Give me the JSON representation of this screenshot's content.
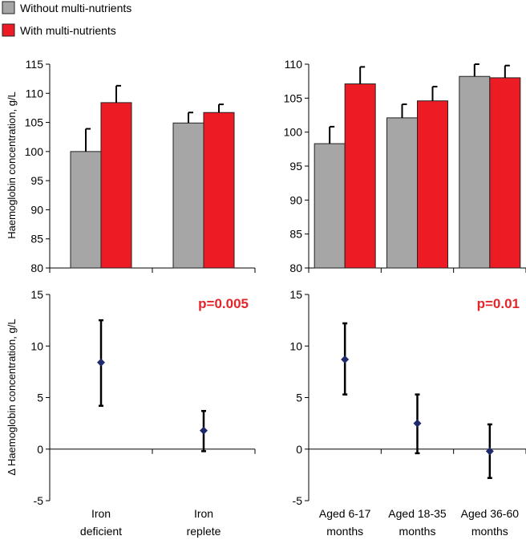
{
  "legend": [
    {
      "label": "Without multi-nutrients",
      "color": "#a6a6a6"
    },
    {
      "label": "With multi-nutrients",
      "color": "#ed1c24"
    }
  ],
  "y_label_top": "Haemoglobin concentration, g/L",
  "y_label_bottom": "Δ Haemoglobin concentration, g/L",
  "chart_data": [
    {
      "id": "top-left",
      "type": "bar",
      "categories": [
        "Iron deficient",
        "Iron replete"
      ],
      "series": [
        {
          "name": "Without multi-nutrients",
          "values": [
            100.0,
            104.9
          ],
          "errors": [
            3.9,
            1.8
          ]
        },
        {
          "name": "With multi-nutrients",
          "values": [
            108.4,
            106.7
          ],
          "errors": [
            2.9,
            1.4
          ]
        }
      ],
      "ylim": [
        80,
        115
      ],
      "yticks": [
        80,
        85,
        90,
        95,
        100,
        105,
        110,
        115
      ],
      "ylabel": "Haemoglobin concentration, g/L"
    },
    {
      "id": "top-right",
      "type": "bar",
      "categories": [
        "Aged 6-17 months",
        "Aged 18-35 months",
        "Aged 36-60 months"
      ],
      "series": [
        {
          "name": "Without multi-nutrients",
          "values": [
            98.3,
            102.1,
            108.2
          ],
          "errors": [
            2.5,
            2.0,
            1.8
          ]
        },
        {
          "name": "With multi-nutrients",
          "values": [
            107.1,
            104.6,
            108.0
          ],
          "errors": [
            2.5,
            2.1,
            1.8
          ]
        }
      ],
      "ylim": [
        80,
        110
      ],
      "yticks": [
        80,
        85,
        90,
        95,
        100,
        105,
        110
      ]
    },
    {
      "id": "bottom-left",
      "type": "scatter",
      "categories": [
        "Iron deficient",
        "Iron replete"
      ],
      "category_lines": [
        [
          "Iron",
          "deficient"
        ],
        [
          "Iron",
          "replete"
        ]
      ],
      "values": [
        8.4,
        1.8
      ],
      "lower": [
        4.2,
        -0.2
      ],
      "upper": [
        12.5,
        3.7
      ],
      "ylim": [
        -5,
        15
      ],
      "yticks": [
        -5,
        0,
        5,
        10,
        15
      ],
      "annotation": "p=0.005",
      "ylabel": "Δ Haemoglobin concentration, g/L"
    },
    {
      "id": "bottom-right",
      "type": "scatter",
      "categories": [
        "Aged 6-17 months",
        "Aged 18-35 months",
        "Aged 36-60 months"
      ],
      "category_lines": [
        [
          "Aged 6-17",
          "months"
        ],
        [
          "Aged 18-35",
          "months"
        ],
        [
          "Aged 36-60",
          "months"
        ]
      ],
      "values": [
        8.7,
        2.5,
        -0.2
      ],
      "lower": [
        5.3,
        -0.4,
        -2.8
      ],
      "upper": [
        12.2,
        5.3,
        2.4
      ],
      "ylim": [
        -5,
        15
      ],
      "yticks": [
        -5,
        0,
        5,
        10,
        15
      ],
      "annotation": "p=0.01"
    }
  ],
  "colors": {
    "without": "#a6a6a6",
    "with": "#ed1c24",
    "marker": "#1f2a6b",
    "annotation": "#e3262c"
  }
}
